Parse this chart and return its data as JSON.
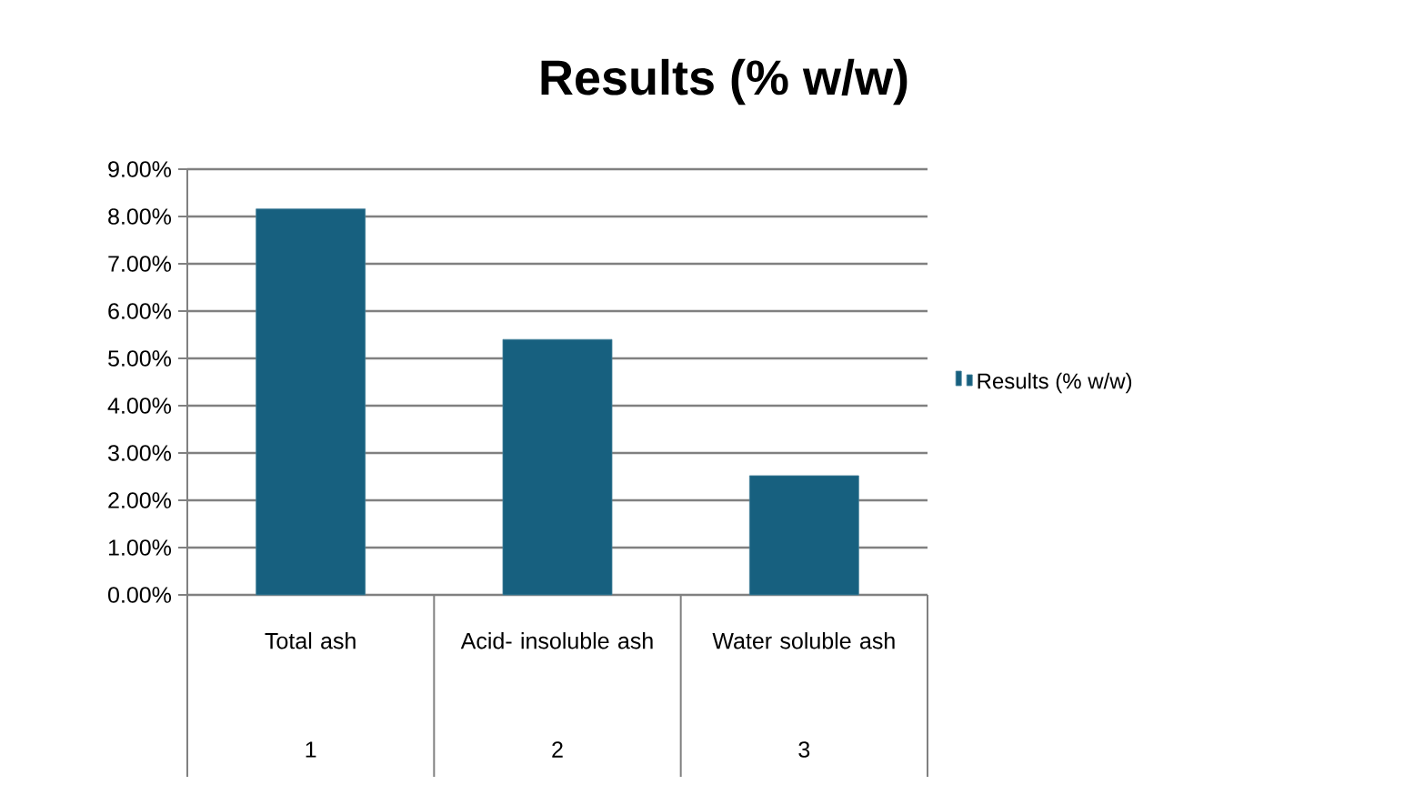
{
  "chart_data": {
    "type": "bar",
    "title": "Results (% w/w)",
    "categories": [
      "Total ash",
      "Acid- insoluble ash",
      "Water soluble ash"
    ],
    "series": [
      {
        "name": "Results (% w/w)",
        "color": "#17607f",
        "values": [
          8.16,
          5.4,
          2.52
        ]
      }
    ],
    "ylim": [
      0,
      9
    ],
    "yticks": [
      {
        "value": 0,
        "label": "0.00%"
      },
      {
        "value": 1,
        "label": "1.00%"
      },
      {
        "value": 2,
        "label": "2.00%"
      },
      {
        "value": 3,
        "label": "3.00%"
      },
      {
        "value": 4,
        "label": "4.00%"
      },
      {
        "value": 5,
        "label": "5.00%"
      },
      {
        "value": 6,
        "label": "6.00%"
      },
      {
        "value": 7,
        "label": "7.00%"
      },
      {
        "value": 8,
        "label": "8.00%"
      },
      {
        "value": 9,
        "label": "9.00%"
      }
    ],
    "annotations": [
      "1",
      "2",
      "3"
    ],
    "grid": "y",
    "legend": "right"
  }
}
